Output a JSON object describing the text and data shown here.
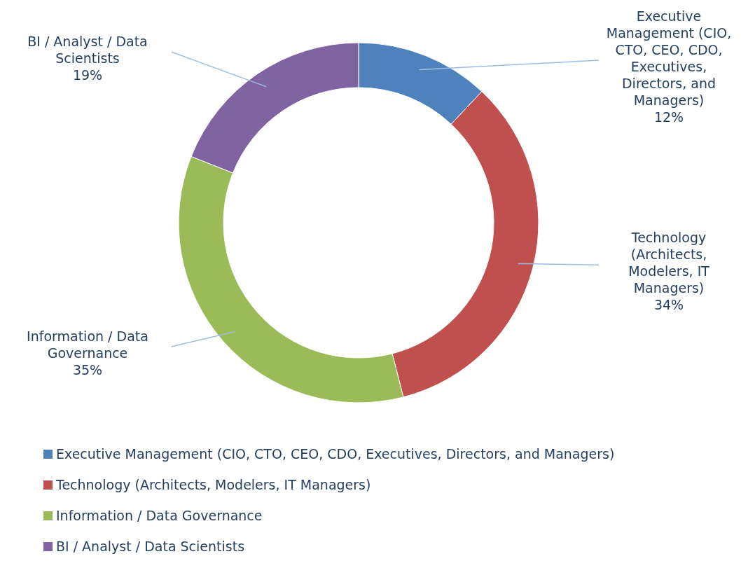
{
  "chart_data": {
    "type": "donut",
    "categories": [
      "Executive Management (CIO, CTO, CEO, CDO, Executives, Directors, and Managers)",
      "Technology (Architects, Modelers, IT Managers)",
      "Information / Data Governance",
      "BI / Analyst / Data Scientists"
    ],
    "values": [
      12,
      34,
      35,
      19
    ],
    "colors": [
      "#4f81bd",
      "#c0504d",
      "#9bbb59",
      "#8064a2"
    ],
    "value_labels": [
      "12%",
      "34%",
      "35%",
      "19%"
    ],
    "legend": "bottom"
  }
}
